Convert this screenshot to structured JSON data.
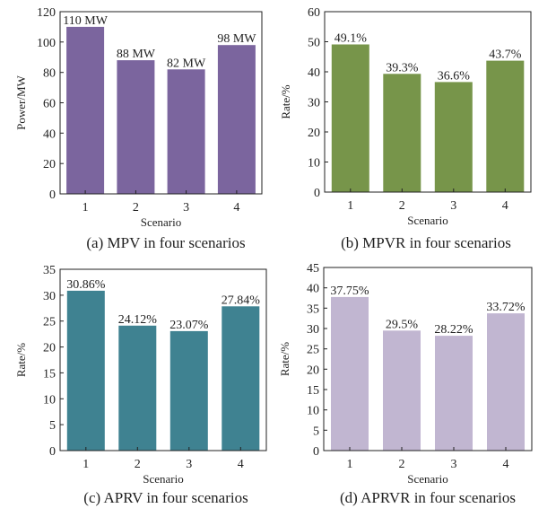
{
  "chart_data": [
    {
      "type": "bar",
      "caption": "(a) MPV in four scenarios",
      "categories": [
        "1",
        "2",
        "3",
        "4"
      ],
      "values": [
        110,
        88,
        82,
        98
      ],
      "data_labels": [
        "110 MW",
        "88 MW",
        "82 MW",
        "98 MW"
      ],
      "xlabel": "Scenario",
      "ylabel": "Power/MW",
      "ylim": [
        0,
        120
      ],
      "yticks": [
        0,
        20,
        40,
        60,
        80,
        100,
        120
      ],
      "color": "#7b659e",
      "grid": false
    },
    {
      "type": "bar",
      "caption": "(b) MPVR in four scenarios",
      "categories": [
        "1",
        "2",
        "3",
        "4"
      ],
      "values": [
        49.1,
        39.3,
        36.6,
        43.7
      ],
      "data_labels": [
        "49.1%",
        "39.3%",
        "36.6%",
        "43.7%"
      ],
      "xlabel": "Scenario",
      "ylabel": "Rate/%",
      "ylim": [
        0,
        60
      ],
      "yticks": [
        0,
        10,
        20,
        30,
        40,
        50,
        60
      ],
      "color": "#77954a",
      "grid": false
    },
    {
      "type": "bar",
      "caption": "(c) APRV in four scenarios",
      "categories": [
        "1",
        "2",
        "3",
        "4"
      ],
      "values": [
        30.86,
        24.12,
        23.07,
        27.84
      ],
      "data_labels": [
        "30.86%",
        "24.12%",
        "23.07%",
        "27.84%"
      ],
      "xlabel": "Scenario",
      "ylabel": "Rate/%",
      "ylim": [
        0,
        35
      ],
      "yticks": [
        0,
        5,
        10,
        15,
        20,
        25,
        30,
        35
      ],
      "color": "#3f8291",
      "grid": false
    },
    {
      "type": "bar",
      "caption": "(d) APRVR in four scenarios",
      "categories": [
        "1",
        "2",
        "3",
        "4"
      ],
      "values": [
        37.75,
        29.5,
        28.22,
        33.72
      ],
      "data_labels": [
        "37.75%",
        "29.5%",
        "28.22%",
        "33.72%"
      ],
      "xlabel": "Scenario",
      "ylabel": "Rate/%",
      "ylim": [
        0,
        45
      ],
      "yticks": [
        0,
        5,
        10,
        15,
        20,
        25,
        30,
        35,
        40,
        45
      ],
      "color": "#c1b6d1",
      "grid": false
    }
  ]
}
